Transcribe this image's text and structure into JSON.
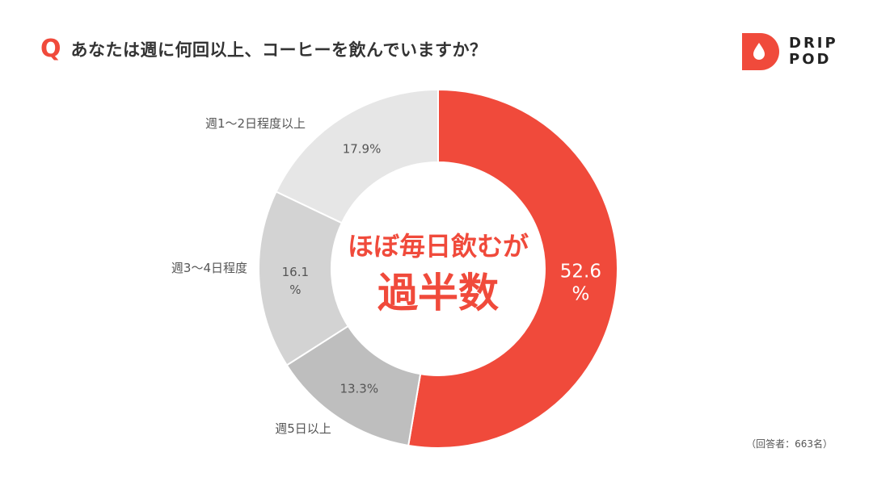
{
  "header": {
    "q_mark": "Q",
    "question": "あなたは週に何回以上、コーヒーを飲んでいますか？"
  },
  "logo": {
    "line1": "DRIP",
    "line2": "POD",
    "icon": "droplet-icon"
  },
  "colors": {
    "accent": "#f04a3b",
    "slice_daily": "#f04a3b",
    "slice_5days": "#bebebe",
    "slice_3to4": "#d3d3d3",
    "slice_1to2": "#e6e6e6",
    "label_dark": "#555555",
    "white": "#ffffff"
  },
  "chart_data": {
    "type": "pie",
    "donut": true,
    "categories": [
      "ほぼ毎日",
      "週5日以上",
      "週3〜4日程度",
      "週1〜2日程度以上"
    ],
    "values": [
      52.6,
      13.3,
      16.1,
      17.9
    ],
    "value_labels": [
      "52.6%",
      "13.3%",
      "16.1%",
      "17.9%"
    ],
    "outside_labels": [
      "",
      "週5日以上",
      "週3〜4日程度",
      "週1〜2日程度以上"
    ],
    "center_text": {
      "line1": "ほぼ毎日飲むが",
      "line2": "過半数"
    }
  },
  "footer": {
    "respondents": "（回答者：663名）"
  }
}
